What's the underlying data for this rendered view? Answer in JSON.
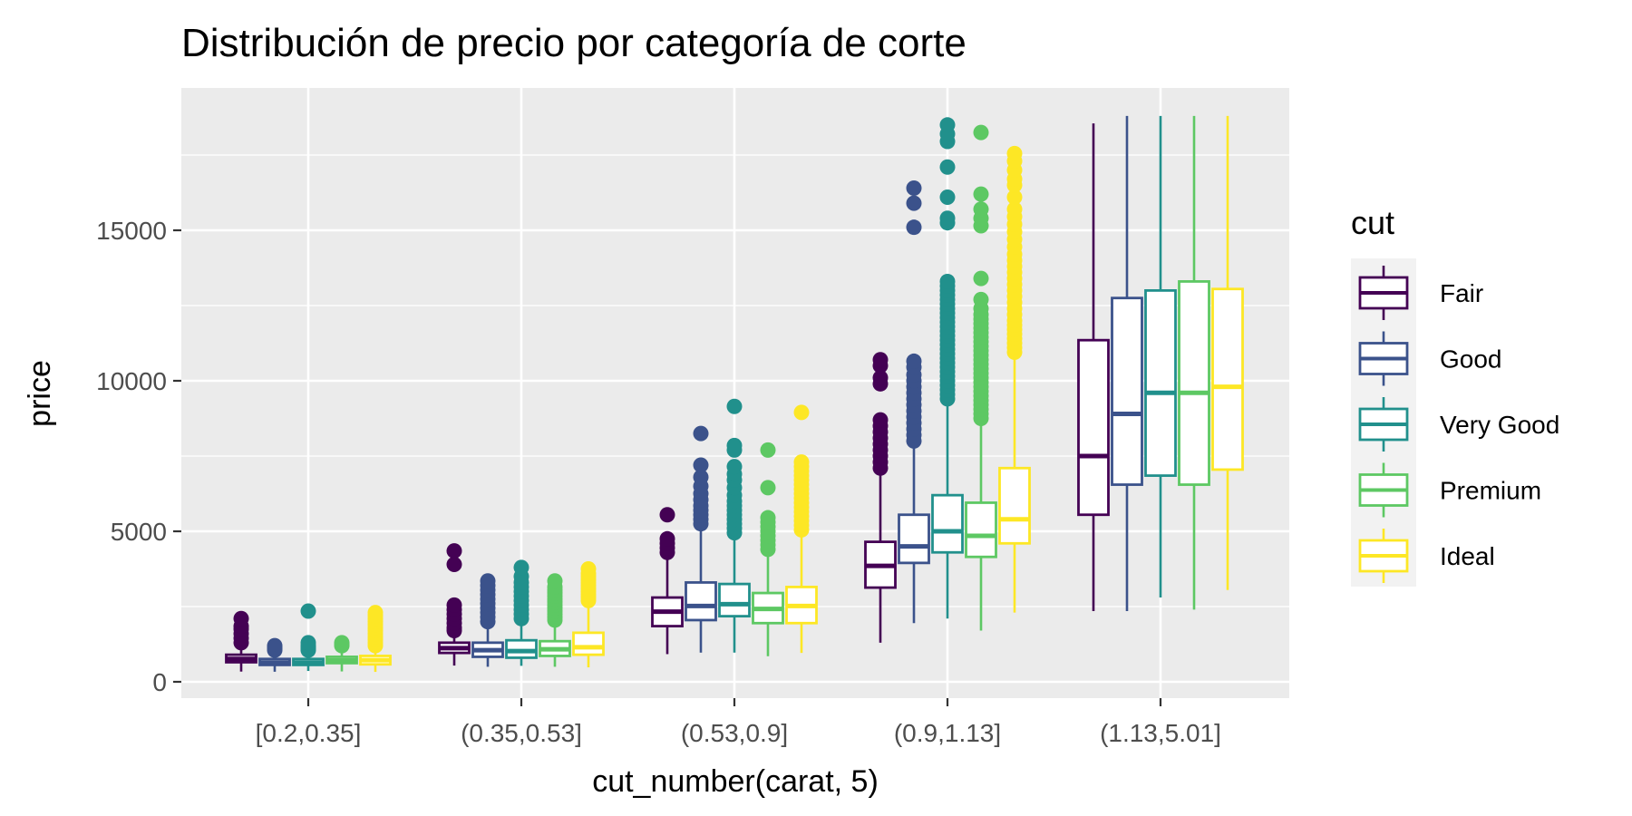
{
  "chart_data": {
    "type": "boxplot",
    "title": "Distribución de precio por categoría de corte",
    "xlabel": "cut_number(carat, 5)",
    "ylabel": "price",
    "categories": [
      "[0.2,0.35]",
      "(0.35,0.53]",
      "(0.53,0.9]",
      "(0.9,1.13]",
      "(1.13,5.01]"
    ],
    "yticks": [
      0,
      5000,
      10000,
      15000
    ],
    "ylim": [
      -500,
      19500
    ],
    "grid": true,
    "legend": {
      "title": "cut",
      "position": "right"
    },
    "series": [
      {
        "name": "Fair",
        "color": "#440154",
        "boxes": [
          {
            "min": 340,
            "q1": 650,
            "median": 760,
            "q3": 900,
            "max": 1200,
            "outliers": [
              1300,
              1450,
              1600,
              1750,
              1850,
              2100
            ]
          },
          {
            "min": 540,
            "q1": 960,
            "median": 1120,
            "q3": 1300,
            "max": 1600,
            "outliers": [
              1700,
              1800,
              1950,
              2100,
              2250,
              2400,
              2550,
              3900,
              4350
            ]
          },
          {
            "min": 920,
            "q1": 1850,
            "median": 2330,
            "q3": 2800,
            "max": 4200,
            "outliers": [
              4300,
              4450,
              4600,
              4750,
              5550
            ]
          },
          {
            "min": 1300,
            "q1": 3130,
            "median": 3850,
            "q3": 4650,
            "max": 6900,
            "outliers": [
              7100,
              7300,
              7500,
              7700,
              7900,
              8100,
              8300,
              8500,
              8700,
              9900,
              10100,
              10500,
              10700
            ]
          },
          {
            "min": 2350,
            "q1": 5550,
            "median": 7500,
            "q3": 11350,
            "max": 18550,
            "outliers": []
          }
        ]
      },
      {
        "name": "Good",
        "color": "#3B528B",
        "boxes": [
          {
            "min": 335,
            "q1": 560,
            "median": 640,
            "q3": 760,
            "max": 1000,
            "outliers": [
              1050,
              1100,
              1150,
              1200
            ]
          },
          {
            "min": 500,
            "q1": 830,
            "median": 1050,
            "q3": 1300,
            "max": 1900,
            "outliers": [
              2000,
              2150,
              2300,
              2450,
              2600,
              2750,
              2900,
              3050,
              3200,
              3350
            ]
          },
          {
            "min": 970,
            "q1": 2050,
            "median": 2520,
            "q3": 3300,
            "max": 5100,
            "outliers": [
              5250,
              5400,
              5550,
              5700,
              5850,
              6050,
              6250,
              6500,
              6800,
              7200,
              8250
            ]
          },
          {
            "min": 1950,
            "q1": 3950,
            "median": 4500,
            "q3": 5550,
            "max": 7800,
            "outliers": [
              8000,
              8200,
              8400,
              8600,
              8800,
              9000,
              9200,
              9400,
              9600,
              9800,
              10000,
              10200,
              10450,
              10650,
              15100,
              15900,
              16400
            ]
          },
          {
            "min": 2350,
            "q1": 6550,
            "median": 8900,
            "q3": 12750,
            "max": 18800,
            "outliers": []
          }
        ]
      },
      {
        "name": "Very Good",
        "color": "#21908C",
        "boxes": [
          {
            "min": 360,
            "q1": 560,
            "median": 640,
            "q3": 760,
            "max": 1000,
            "outliers": [
              1050,
              1100,
              1150,
              1200,
              1300,
              2350
            ]
          },
          {
            "min": 530,
            "q1": 800,
            "median": 1020,
            "q3": 1380,
            "max": 2000,
            "outliers": [
              2100,
              2250,
              2400,
              2550,
              2700,
              2850,
              3000,
              3150,
              3300,
              3500,
              3800
            ]
          },
          {
            "min": 970,
            "q1": 2180,
            "median": 2580,
            "q3": 3250,
            "max": 4800,
            "outliers": [
              4950,
              5100,
              5250,
              5400,
              5550,
              5700,
              5850,
              6000,
              6200,
              6450,
              6700,
              6900,
              7150,
              7700,
              7850,
              9150
            ]
          },
          {
            "min": 2100,
            "q1": 4300,
            "median": 5000,
            "q3": 6200,
            "max": 9300,
            "outliers": [
              9400,
              9550,
              9700,
              9850,
              10000,
              10150,
              10300,
              10450,
              10600,
              10750,
              10900,
              11050,
              11200,
              11350,
              11500,
              11650,
              11800,
              11950,
              12100,
              12250,
              12400,
              12550,
              12700,
              12850,
              13000,
              13150,
              13300,
              15250,
              15400,
              16100,
              17100,
              17950,
              18200,
              18500
            ]
          },
          {
            "min": 2800,
            "q1": 6850,
            "median": 9600,
            "q3": 13000,
            "max": 18800,
            "outliers": []
          }
        ]
      },
      {
        "name": "Premium",
        "color": "#5DC863",
        "boxes": [
          {
            "min": 345,
            "q1": 620,
            "median": 710,
            "q3": 830,
            "max": 1150,
            "outliers": [
              1200,
              1250,
              1300
            ]
          },
          {
            "min": 500,
            "q1": 860,
            "median": 1080,
            "q3": 1350,
            "max": 1950,
            "outliers": [
              2050,
              2150,
              2250,
              2350,
              2450,
              2550,
              2650,
              2750,
              2850,
              2950,
              3050,
              3150,
              3350
            ]
          },
          {
            "min": 850,
            "q1": 1950,
            "median": 2420,
            "q3": 2950,
            "max": 4300,
            "outliers": [
              4400,
              4550,
              4700,
              4850,
              5000,
              5150,
              5300,
              5450,
              6450,
              7700
            ]
          },
          {
            "min": 1700,
            "q1": 4150,
            "median": 4850,
            "q3": 5950,
            "max": 8600,
            "outliers": [
              8750,
              8900,
              9050,
              9200,
              9350,
              9500,
              9650,
              9800,
              9950,
              10100,
              10250,
              10400,
              10550,
              10700,
              10850,
              11000,
              11150,
              11300,
              11450,
              11600,
              11750,
              11900,
              12050,
              12200,
              12400,
              12700,
              13400,
              15150,
              15400,
              15700,
              16200,
              18250
            ]
          },
          {
            "min": 2400,
            "q1": 6550,
            "median": 9600,
            "q3": 13300,
            "max": 18800,
            "outliers": []
          }
        ]
      },
      {
        "name": "Ideal",
        "color": "#FDE725",
        "boxes": [
          {
            "min": 330,
            "q1": 580,
            "median": 720,
            "q3": 860,
            "max": 1150,
            "outliers": [
              1200,
              1300,
              1400,
              1500,
              1600,
              1700,
              1800,
              1900,
              2000,
              2100,
              2200,
              2300
            ]
          },
          {
            "min": 480,
            "q1": 900,
            "median": 1150,
            "q3": 1630,
            "max": 2600,
            "outliers": [
              2700,
              2800,
              2900,
              3000,
              3100,
              3200,
              3300,
              3400,
              3500,
              3600,
              3750
            ]
          },
          {
            "min": 960,
            "q1": 1950,
            "median": 2520,
            "q3": 3150,
            "max": 4950,
            "outliers": [
              5050,
              5200,
              5350,
              5500,
              5650,
              5800,
              5950,
              6100,
              6250,
              6400,
              6550,
              6700,
              6850,
              7000,
              7150,
              7300,
              8950
            ]
          },
          {
            "min": 2300,
            "q1": 4600,
            "median": 5400,
            "q3": 7100,
            "max": 10800,
            "outliers": [
              10950,
              11100,
              11250,
              11400,
              11550,
              11700,
              11850,
              12000,
              12200,
              12400,
              12600,
              12800,
              13000,
              13200,
              13400,
              13600,
              13800,
              14000,
              14200,
              14450,
              14700,
              14950,
              15200,
              15450,
              15700,
              16100,
              16500,
              16700,
              17000,
              17300,
              17550
            ]
          },
          {
            "min": 3050,
            "q1": 7050,
            "median": 9800,
            "q3": 13050,
            "max": 18800,
            "outliers": []
          }
        ]
      }
    ]
  }
}
